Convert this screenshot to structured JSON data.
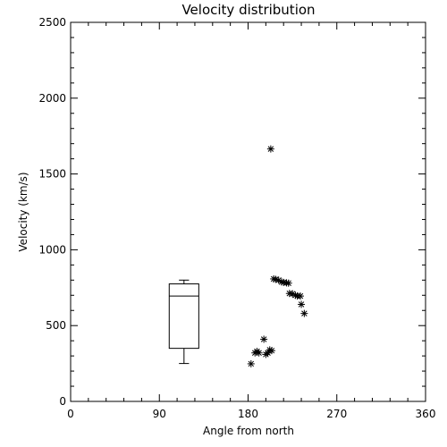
{
  "chart_data": {
    "type": "scatter",
    "title": "Velocity distribution",
    "xlabel": "Angle from north",
    "ylabel": "Velocity (km/s)",
    "xlim": [
      0,
      360
    ],
    "ylim": [
      0,
      2500
    ],
    "x_ticks": [
      0,
      90,
      180,
      270,
      360
    ],
    "y_ticks": [
      0,
      500,
      1000,
      1500,
      2000,
      2500
    ],
    "x_tick_labels": [
      "0",
      "90",
      "180",
      "270",
      "360"
    ],
    "y_tick_labels": [
      "0",
      "500",
      "1000",
      "1500",
      "2000",
      "2500"
    ],
    "grid": false,
    "marker": "asterisk",
    "points": [
      {
        "x": 203,
        "y": 1665
      },
      {
        "x": 206,
        "y": 808
      },
      {
        "x": 208,
        "y": 805
      },
      {
        "x": 211,
        "y": 800
      },
      {
        "x": 214,
        "y": 788
      },
      {
        "x": 216,
        "y": 785
      },
      {
        "x": 219,
        "y": 782
      },
      {
        "x": 221,
        "y": 780
      },
      {
        "x": 222,
        "y": 712
      },
      {
        "x": 225,
        "y": 710
      },
      {
        "x": 228,
        "y": 700
      },
      {
        "x": 230,
        "y": 695
      },
      {
        "x": 233,
        "y": 695
      },
      {
        "x": 234,
        "y": 640
      },
      {
        "x": 237,
        "y": 580
      },
      {
        "x": 183,
        "y": 248
      },
      {
        "x": 187,
        "y": 320
      },
      {
        "x": 189,
        "y": 330
      },
      {
        "x": 191,
        "y": 320
      },
      {
        "x": 196,
        "y": 410
      },
      {
        "x": 198,
        "y": 310
      },
      {
        "x": 200,
        "y": 320
      },
      {
        "x": 202,
        "y": 340
      },
      {
        "x": 204,
        "y": 335
      }
    ],
    "boxplot": {
      "x_left": 100,
      "x_right": 130,
      "whisker_low": 250,
      "q1": 350,
      "median": 695,
      "q3": 775,
      "whisker_high": 800
    }
  }
}
